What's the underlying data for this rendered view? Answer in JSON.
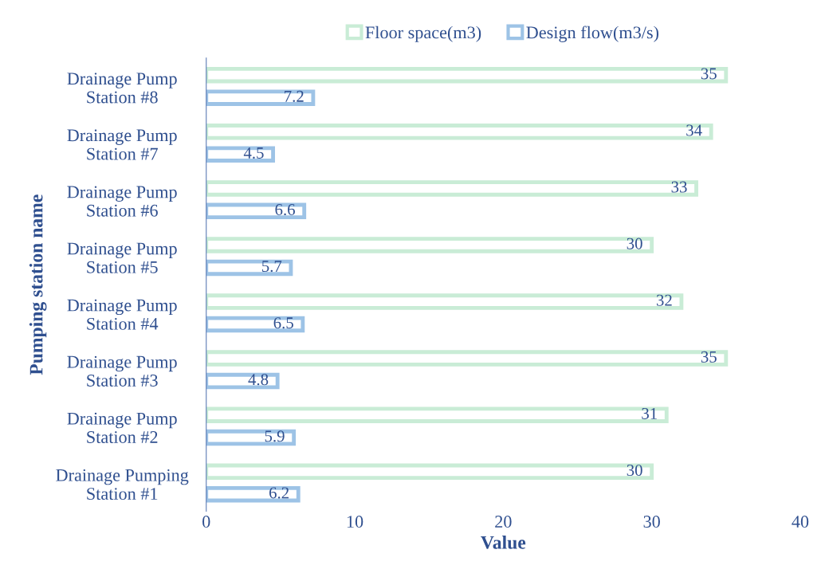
{
  "chart_data": {
    "type": "bar",
    "orientation": "horizontal",
    "xlabel": "Value",
    "ylabel": "Pumping station name",
    "categories": [
      "Drainage Pump\nStation #8",
      "Drainage Pump\nStation #7",
      "Drainage Pump\nStation #6",
      "Drainage Pump\nStation #5",
      "Drainage Pump\nStation #4",
      "Drainage Pump\nStation #3",
      "Drainage Pump\nStation #2",
      "Drainage Pumping\nStation #1"
    ],
    "series": [
      {
        "name": "Floor space(m3)",
        "color": "#c9ecd6",
        "values": [
          35,
          34,
          33,
          30,
          32,
          35,
          31,
          30
        ]
      },
      {
        "name": "Design flow(m3/s)",
        "color": "#9dc3e6",
        "values": [
          7.2,
          4.5,
          6.6,
          5.7,
          6.5,
          4.8,
          5.9,
          6.2
        ]
      }
    ],
    "xlim": [
      0,
      40
    ],
    "xticks": [
      0,
      10,
      20,
      30,
      40
    ],
    "data_labels": true,
    "legend": "top",
    "grid": false
  }
}
